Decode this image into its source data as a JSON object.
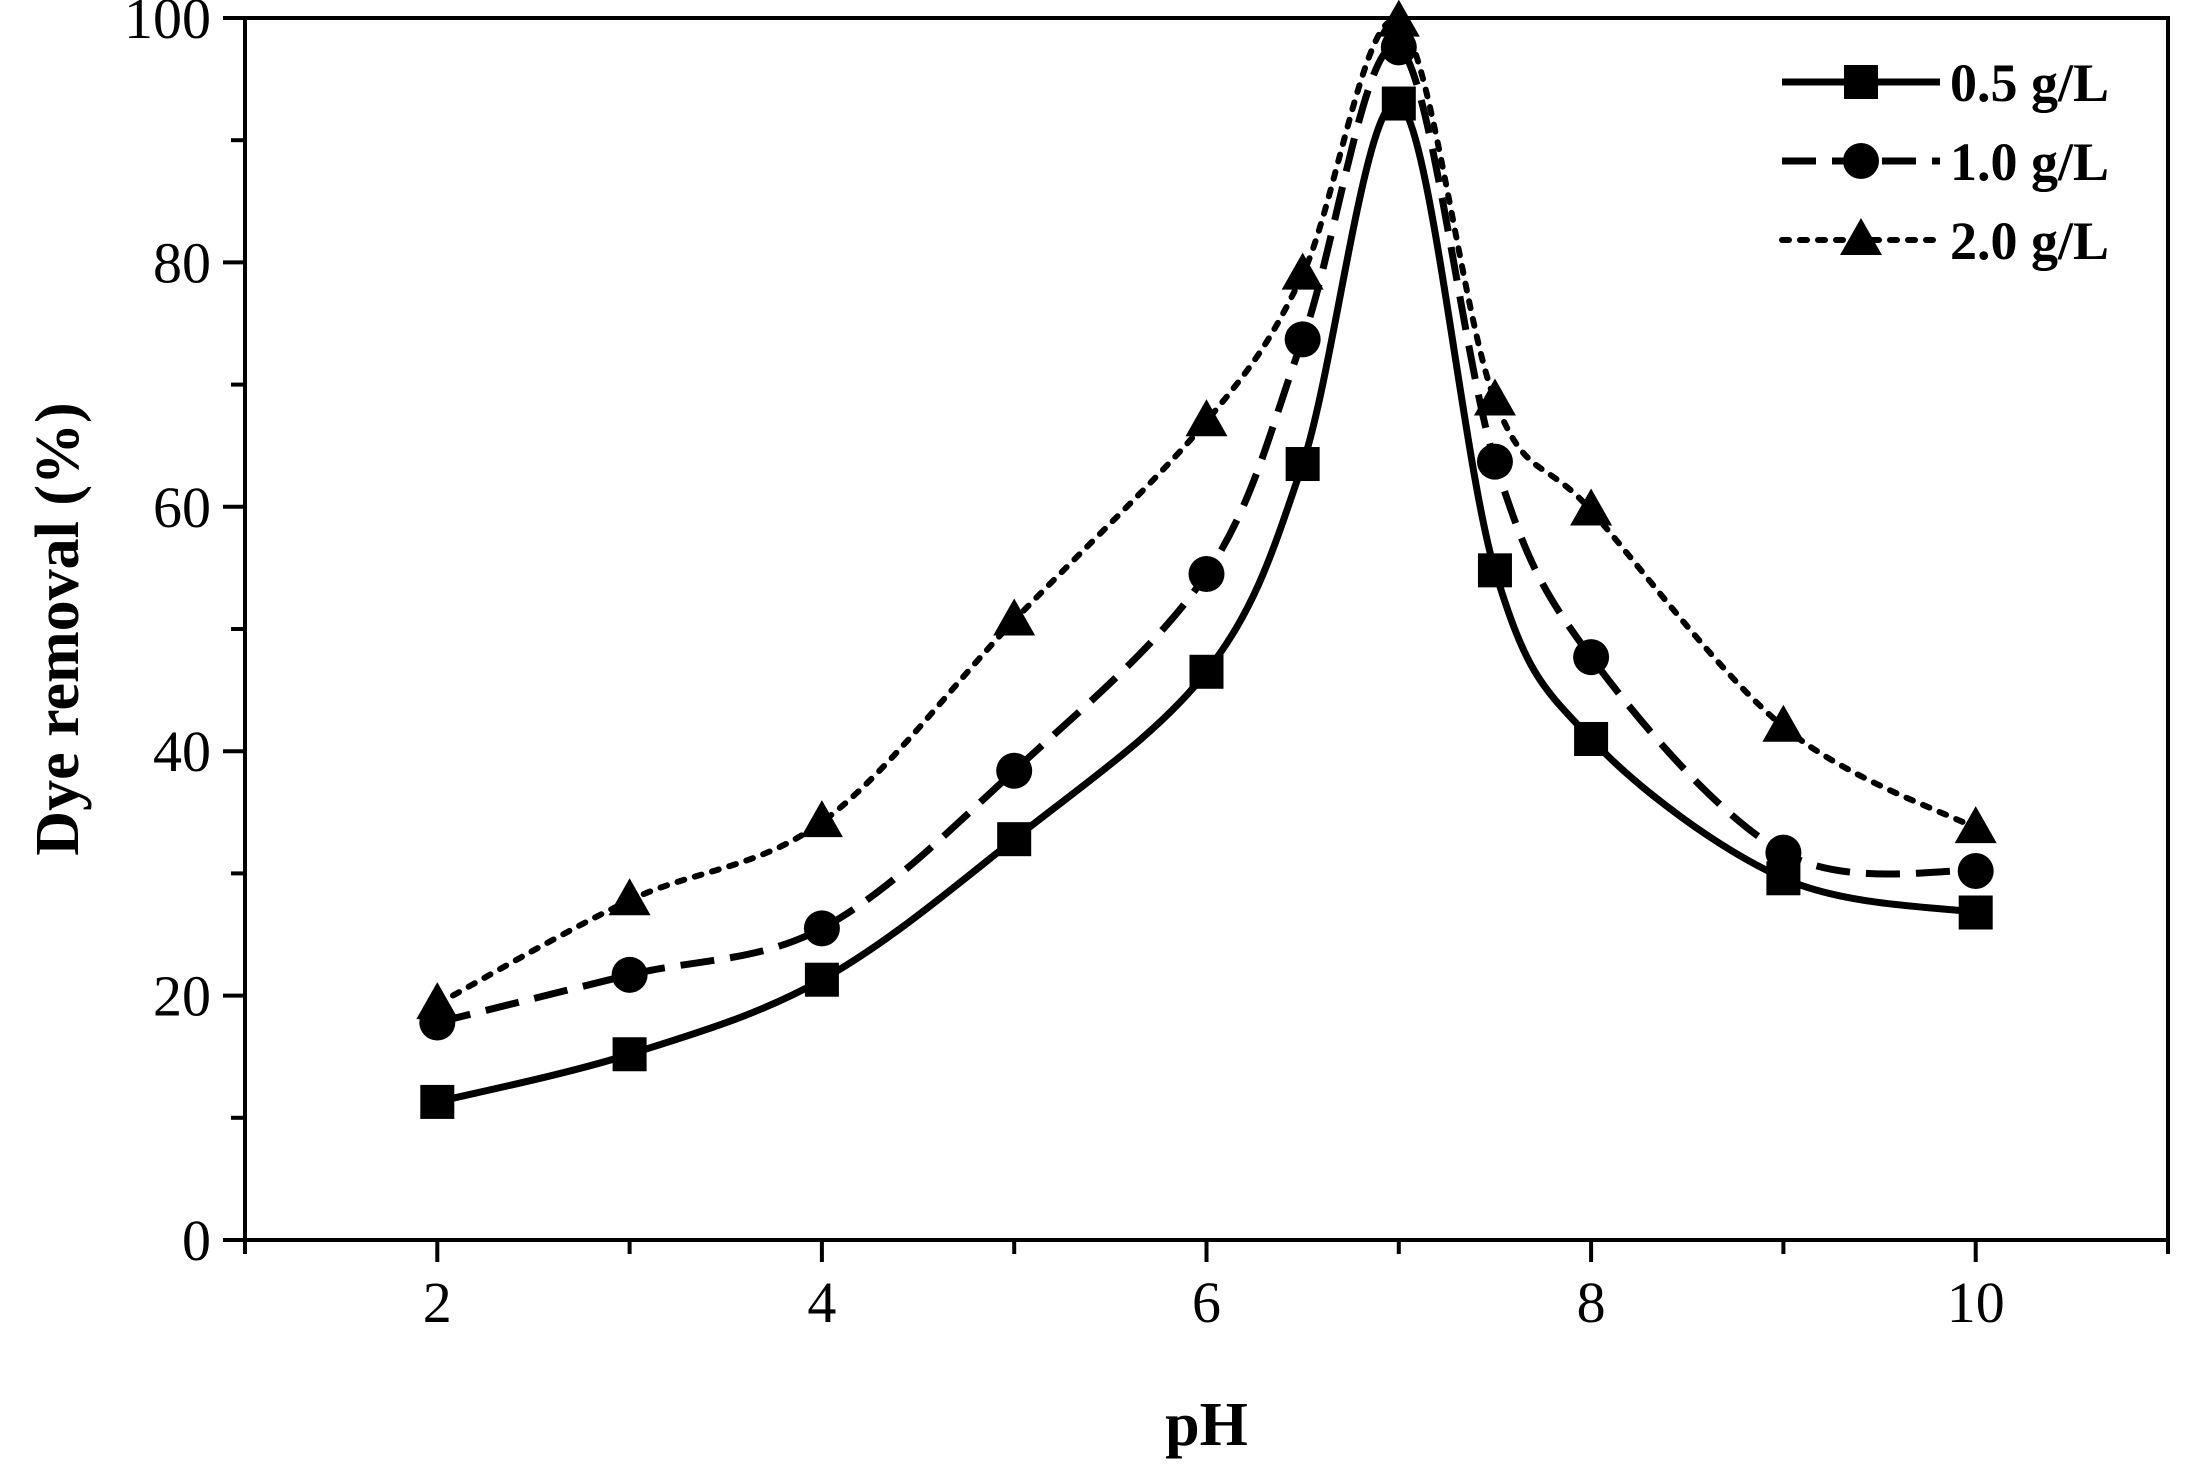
{
  "chart_data": {
    "type": "line",
    "xlabel": "pH",
    "ylabel": "Dye removal (%)",
    "xlim": [
      1,
      11
    ],
    "ylim": [
      0,
      100
    ],
    "x_ticks": [
      2,
      4,
      6,
      8,
      10
    ],
    "y_ticks": [
      0,
      20,
      40,
      60,
      80,
      100
    ],
    "x_tick_labels": [
      "2",
      "4",
      "6",
      "8",
      "10"
    ],
    "y_tick_labels": [
      "0",
      "20",
      "40",
      "60",
      "80",
      "100"
    ],
    "legend_position": "top-right",
    "x": [
      2,
      3,
      4,
      5,
      6,
      6.5,
      7,
      7.5,
      8,
      9,
      10
    ],
    "series": [
      {
        "name": "0.5 g/L",
        "marker": "square",
        "line_style": "solid",
        "color": "#000000",
        "values": [
          11.3,
          15.2,
          21.3,
          32.8,
          46.5,
          63.5,
          93.0,
          54.8,
          41.0,
          29.6,
          26.8
        ]
      },
      {
        "name": "1.0 g/L",
        "marker": "circle",
        "line_style": "dashed",
        "color": "#000000",
        "values": [
          17.8,
          21.7,
          25.5,
          38.4,
          54.5,
          73.7,
          97.6,
          63.7,
          47.7,
          31.7,
          30.2
        ]
      },
      {
        "name": "2.0 g/L",
        "marker": "triangle",
        "line_style": "dotted",
        "color": "#000000",
        "values": [
          19.3,
          27.8,
          34.2,
          50.7,
          67.0,
          79.0,
          99.7,
          68.7,
          59.7,
          42.0,
          33.7
        ]
      }
    ]
  }
}
